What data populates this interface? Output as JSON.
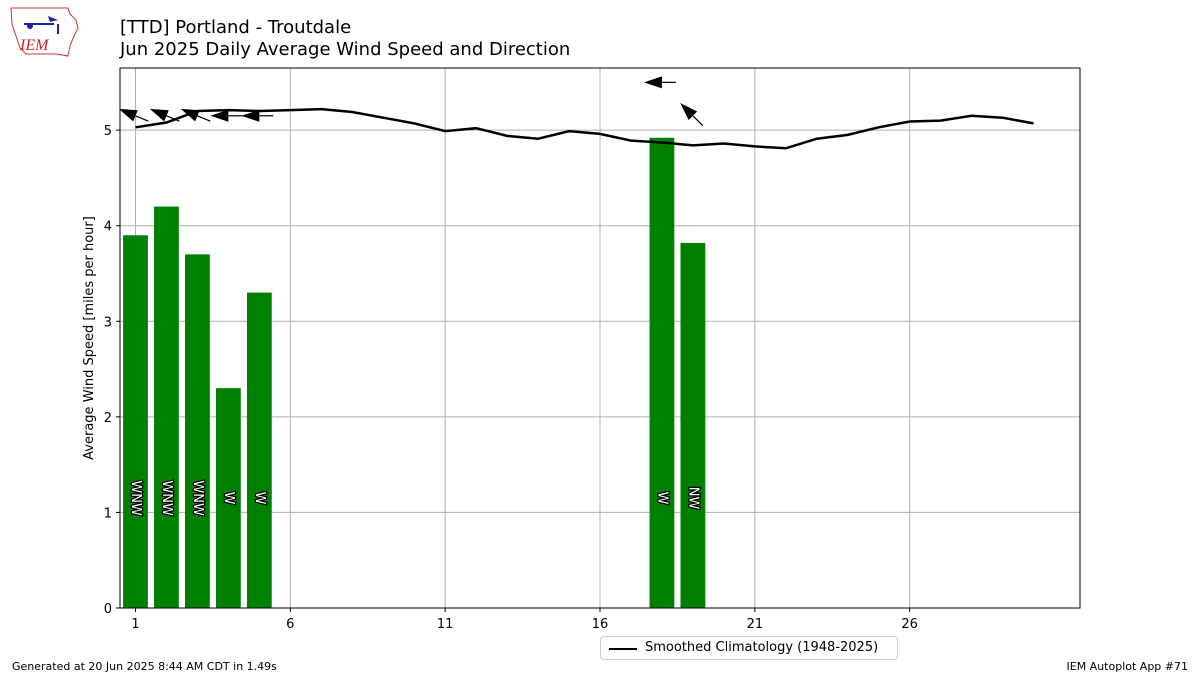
{
  "header": {
    "title_line1": "[TTD] Portland - Troutdale",
    "title_line2": "Jun 2025 Daily Average Wind Speed and Direction"
  },
  "logo": {
    "text": "IEM",
    "icon": "iem-iowa-logo"
  },
  "footer": {
    "generated": "Generated at 20 Jun 2025 8:44 AM CDT in 1.49s",
    "app": "IEM Autoplot App #71"
  },
  "colors": {
    "bar": "#008000",
    "climo": "#000000",
    "grid": "#b0b0b0"
  },
  "chart_data": {
    "type": "bar",
    "ylabel": "Average Wind Speed [miles per hour]",
    "xlabel": "",
    "xlim": [
      0.5,
      31.5
    ],
    "ylim": [
      0,
      5.65
    ],
    "xticks": [
      1,
      6,
      11,
      16,
      21,
      26
    ],
    "yticks": [
      0,
      1,
      2,
      3,
      4,
      5
    ],
    "grid": true,
    "bars": [
      {
        "day": 1,
        "value": 3.9,
        "dir": "WNW",
        "dir_deg": 292.5
      },
      {
        "day": 2,
        "value": 4.2,
        "dir": "WNW",
        "dir_deg": 292.5
      },
      {
        "day": 3,
        "value": 3.7,
        "dir": "WNW",
        "dir_deg": 292.5
      },
      {
        "day": 4,
        "value": 2.3,
        "dir": "W",
        "dir_deg": 270
      },
      {
        "day": 5,
        "value": 3.3,
        "dir": "W",
        "dir_deg": 270
      },
      {
        "day": 18,
        "value": 4.92,
        "dir": "W",
        "dir_deg": 270
      },
      {
        "day": 19,
        "value": 3.82,
        "dir": "NW",
        "dir_deg": 315
      }
    ],
    "climatology": {
      "name": "Smoothed Climatology (1948-2025)",
      "days": [
        1,
        2,
        3,
        4,
        5,
        6,
        7,
        8,
        9,
        10,
        11,
        12,
        13,
        14,
        15,
        16,
        17,
        18,
        19,
        20,
        21,
        22,
        23,
        24,
        25,
        26,
        27,
        28,
        29,
        30
      ],
      "values": [
        5.03,
        5.08,
        5.2,
        5.21,
        5.2,
        5.21,
        5.22,
        5.19,
        5.13,
        5.07,
        4.99,
        5.02,
        4.94,
        4.91,
        4.99,
        4.96,
        4.89,
        4.87,
        4.84,
        4.86,
        4.83,
        4.81,
        4.91,
        4.95,
        5.03,
        5.09,
        5.1,
        5.15,
        5.13,
        5.07
      ]
    },
    "legend_position": "below-center"
  }
}
